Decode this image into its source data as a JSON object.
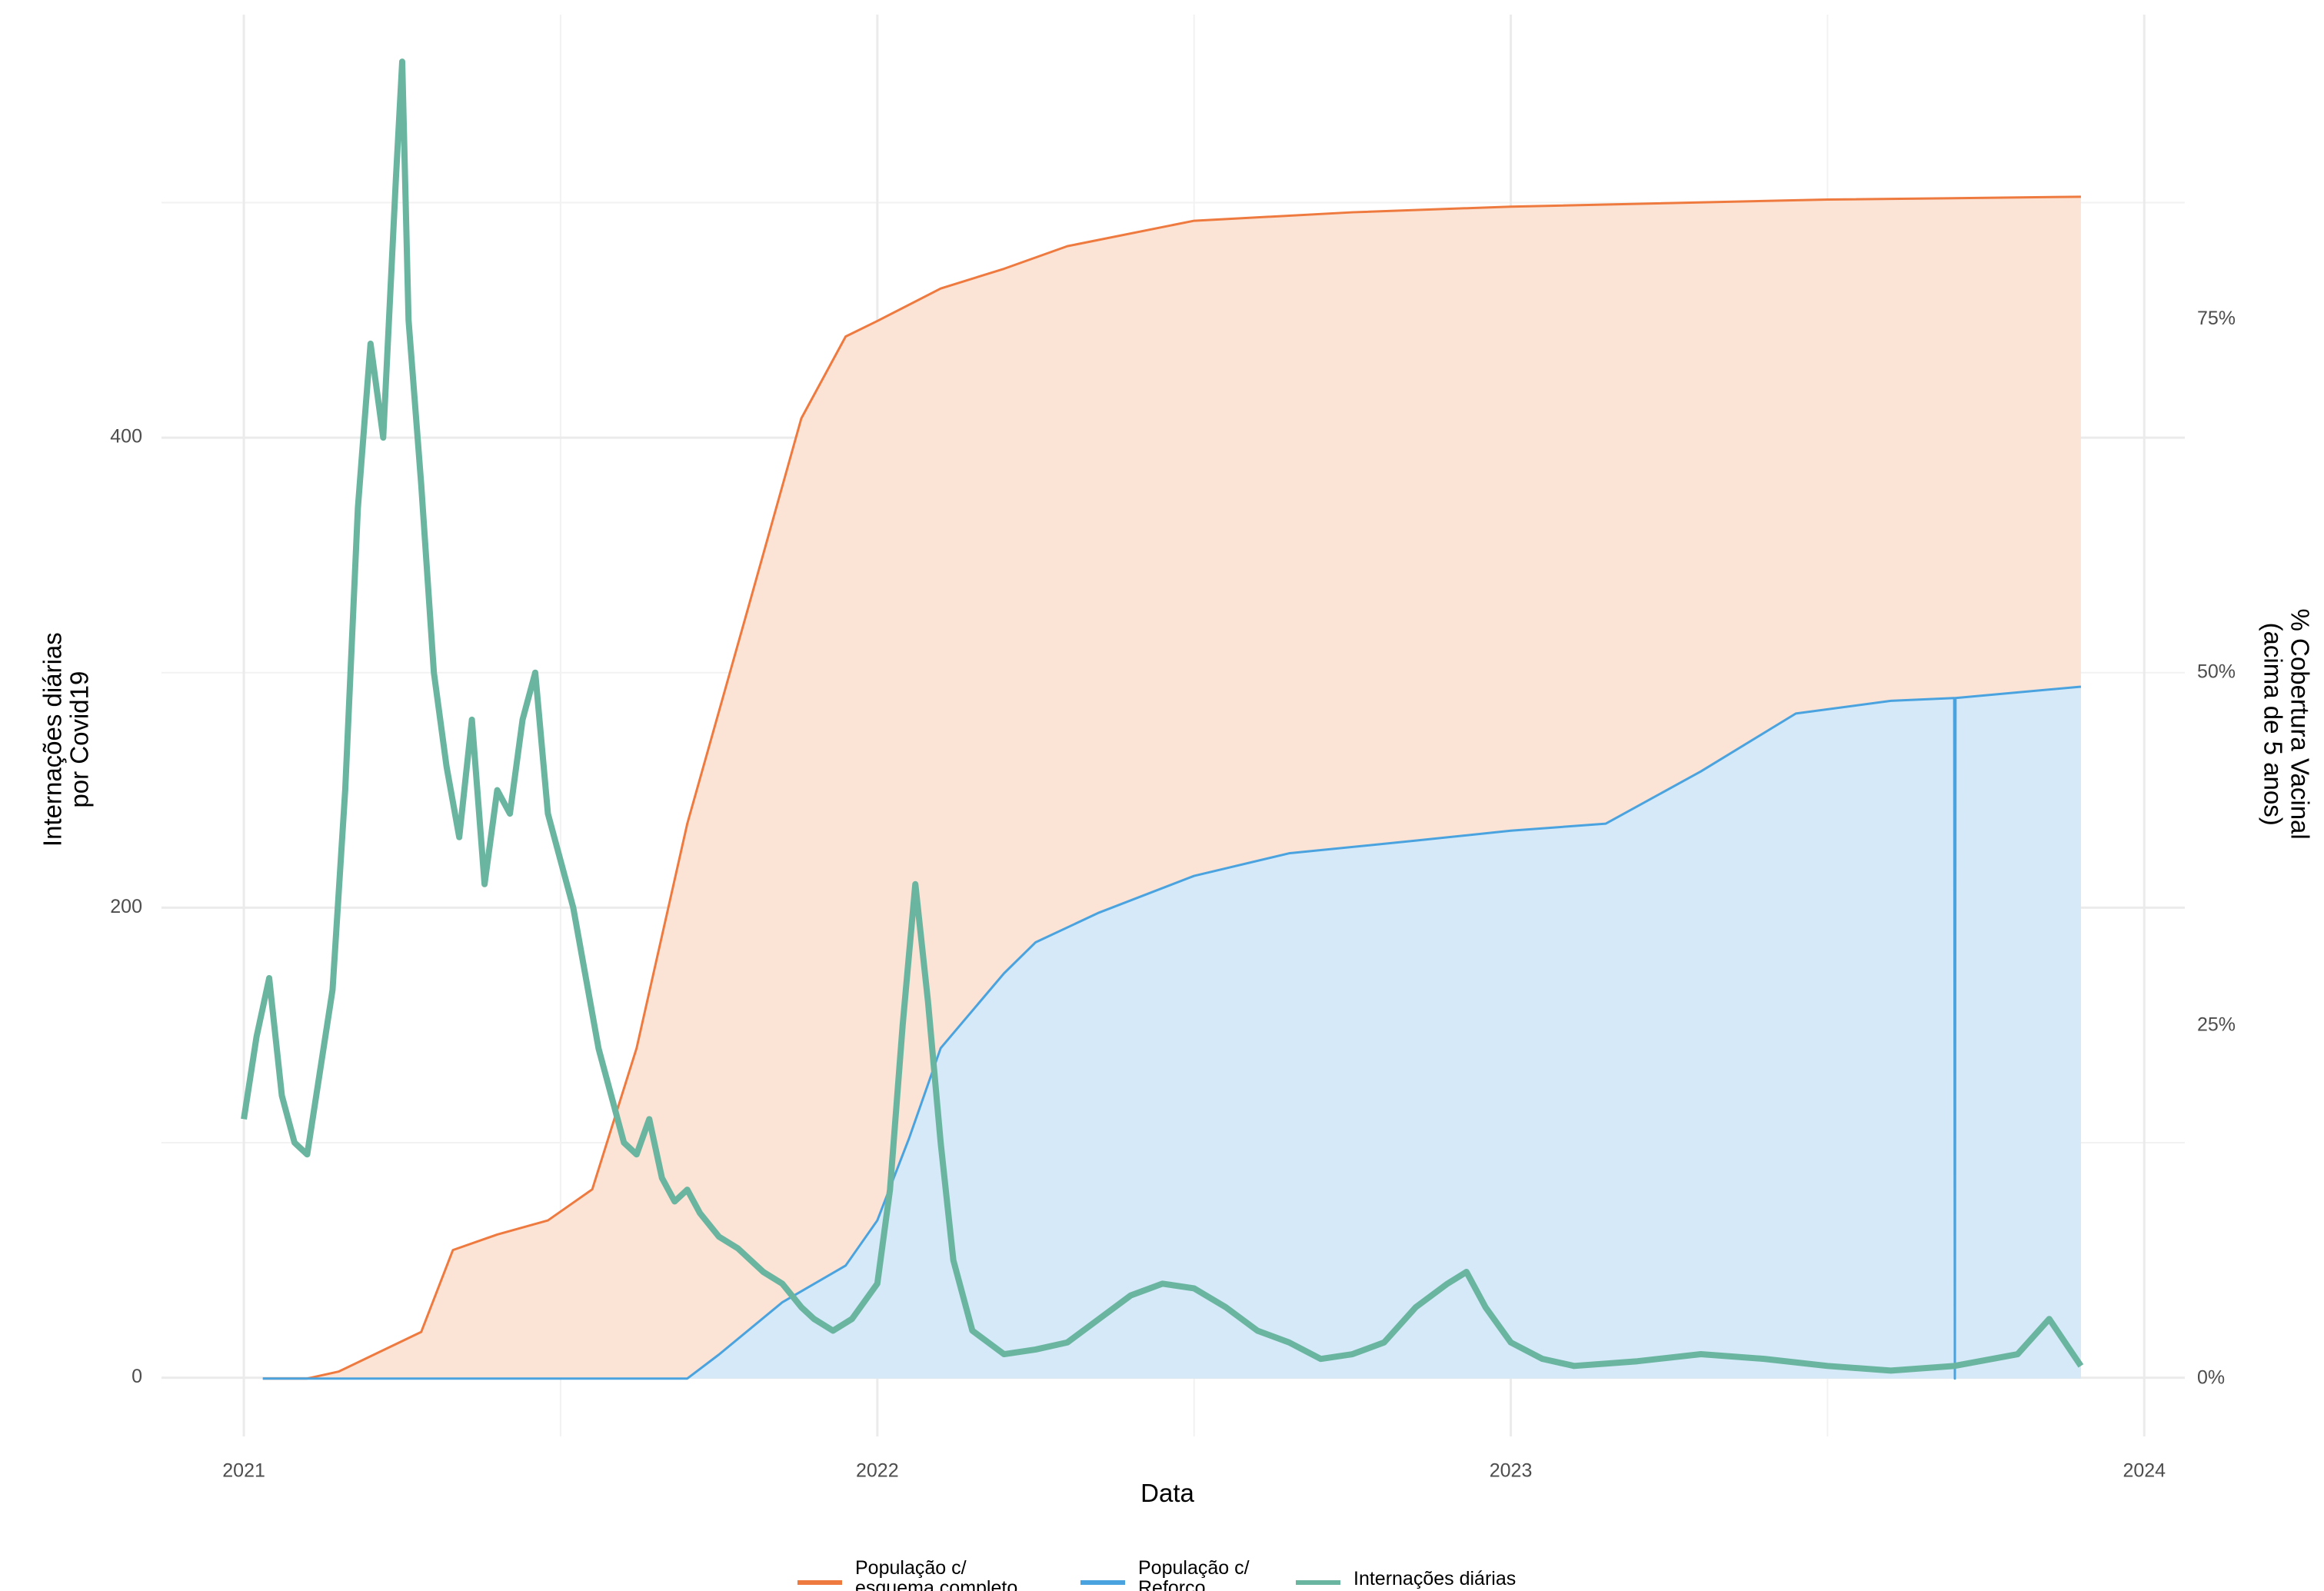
{
  "chart_data": {
    "type": "line",
    "x_label": "Data",
    "y_label": "Internações diárias\npor Covid19",
    "y2_label": "% Cobertura Vacinal\n(acima de 5 anos)",
    "xlim": [
      2020.87,
      2024.064
    ],
    "xticks": [
      2021,
      2022,
      2023,
      2024
    ],
    "ylim": [
      -25,
      580
    ],
    "yticks": [
      0,
      200,
      400
    ],
    "y2lim": [
      -4.1,
      96.6
    ],
    "y2ticks": [
      {
        "value": 0,
        "label": "0%"
      },
      {
        "value": 25,
        "label": "25%"
      },
      {
        "value": 50,
        "label": "50%"
      },
      {
        "value": 75,
        "label": "75%"
      }
    ],
    "grid": true,
    "legend": "bottom",
    "series": [
      {
        "name": "População c/\nesquema completo",
        "color": "#ee7a3f",
        "fill": "#fbe3d6",
        "axis": "y2",
        "x": [
          2021.03,
          2021.1,
          2021.15,
          2021.28,
          2021.33,
          2021.4,
          2021.48,
          2021.55,
          2021.62,
          2021.7,
          2021.8,
          2021.88,
          2021.95,
          2022.0,
          2022.1,
          2022.2,
          2022.3,
          2022.5,
          2022.75,
          2023.0,
          2023.5,
          2023.9
        ],
        "values": [
          0,
          0,
          0.5,
          3.3,
          9.1,
          10.2,
          11.2,
          13.4,
          23.4,
          39.3,
          55.2,
          68,
          73.8,
          74.9,
          77.2,
          78.6,
          80.2,
          82,
          82.6,
          83,
          83.5,
          83.7
        ]
      },
      {
        "name": "População c/\nReforço",
        "color": "#4aa3df",
        "fill": "#d5e9f8",
        "axis": "y2",
        "x": [
          2021.03,
          2021.7,
          2021.75,
          2021.85,
          2021.95,
          2022.0,
          2022.05,
          2022.1,
          2022.2,
          2022.25,
          2022.35,
          2022.5,
          2022.65,
          2022.85,
          2023.0,
          2023.15,
          2023.3,
          2023.45,
          2023.6,
          2023.7,
          2023.701,
          2023.702,
          2023.9
        ],
        "values": [
          0,
          0,
          1.7,
          5.4,
          8,
          11.2,
          17,
          23.4,
          28.7,
          30.9,
          33,
          35.6,
          37.2,
          38.1,
          38.8,
          39.3,
          43,
          47.1,
          48,
          48.2,
          0,
          48.2,
          49
        ]
      },
      {
        "name": "Internações diárias",
        "color": "#6ab5a0",
        "fill": null,
        "axis": "y",
        "x": [
          2021.0,
          2021.02,
          2021.04,
          2021.06,
          2021.08,
          2021.1,
          2021.12,
          2021.14,
          2021.16,
          2021.18,
          2021.2,
          2021.22,
          2021.24,
          2021.25,
          2021.26,
          2021.28,
          2021.3,
          2021.32,
          2021.34,
          2021.36,
          2021.38,
          2021.4,
          2021.42,
          2021.44,
          2021.46,
          2021.48,
          2021.5,
          2021.52,
          2021.54,
          2021.56,
          2021.58,
          2021.6,
          2021.62,
          2021.64,
          2021.66,
          2021.68,
          2021.7,
          2021.72,
          2021.75,
          2021.78,
          2021.8,
          2021.82,
          2021.85,
          2021.88,
          2021.9,
          2021.93,
          2021.96,
          2022.0,
          2022.02,
          2022.04,
          2022.06,
          2022.08,
          2022.1,
          2022.12,
          2022.15,
          2022.2,
          2022.25,
          2022.3,
          2022.35,
          2022.4,
          2022.45,
          2022.5,
          2022.55,
          2022.6,
          2022.65,
          2022.7,
          2022.75,
          2022.8,
          2022.85,
          2022.9,
          2022.93,
          2022.96,
          2023.0,
          2023.05,
          2023.1,
          2023.2,
          2023.3,
          2023.4,
          2023.5,
          2023.6,
          2023.7,
          2023.8,
          2023.85,
          2023.9
        ],
        "values": [
          110,
          145,
          170,
          120,
          100,
          95,
          130,
          165,
          250,
          370,
          440,
          400,
          510,
          560,
          450,
          380,
          300,
          260,
          230,
          280,
          210,
          250,
          240,
          280,
          300,
          240,
          220,
          200,
          170,
          140,
          120,
          100,
          95,
          110,
          85,
          75,
          80,
          70,
          60,
          55,
          50,
          45,
          40,
          30,
          25,
          20,
          25,
          40,
          80,
          150,
          210,
          160,
          100,
          50,
          20,
          10,
          12,
          15,
          25,
          35,
          40,
          38,
          30,
          20,
          15,
          8,
          10,
          15,
          30,
          40,
          45,
          30,
          15,
          8,
          5,
          7,
          10,
          8,
          5,
          3,
          5,
          10,
          25,
          5
        ]
      }
    ]
  }
}
